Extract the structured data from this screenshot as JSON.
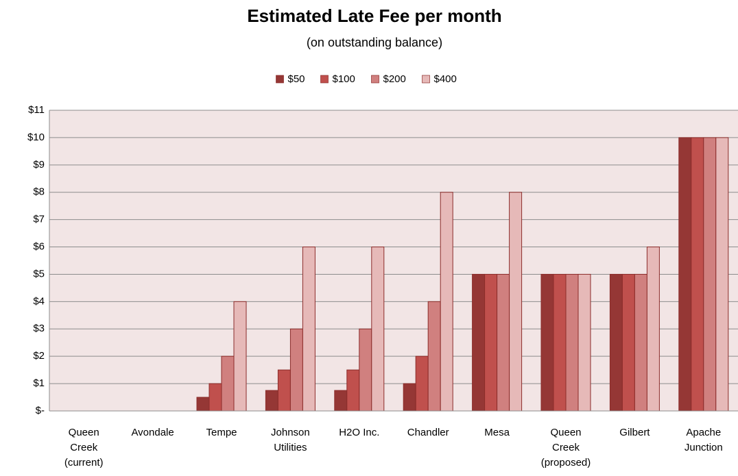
{
  "chart_data": {
    "type": "bar",
    "title": "Estimated Late Fee per month",
    "subtitle": "(on outstanding balance)",
    "categories": [
      "Queen Creek (current)",
      "Avondale",
      "Tempe",
      "Johnson Utilities",
      "H2O Inc.",
      "Chandler",
      "Mesa",
      "Queen Creek (proposed)",
      "Gilbert",
      "Apache Junction"
    ],
    "series": [
      {
        "name": "$50",
        "color": "#953735",
        "values": [
          0,
          0,
          0.5,
          0.75,
          0.75,
          1,
          5,
          5,
          5,
          10
        ]
      },
      {
        "name": "$100",
        "color": "#c0504d",
        "values": [
          0,
          0,
          1,
          1.5,
          1.5,
          2,
          5,
          5,
          5,
          10
        ]
      },
      {
        "name": "$200",
        "color": "#d0807f",
        "values": [
          0,
          0,
          2,
          3,
          3,
          4,
          5,
          5,
          5,
          10
        ]
      },
      {
        "name": "$400",
        "color": "#e6b9b8",
        "values": [
          0,
          0,
          4,
          6,
          6,
          8,
          8,
          5,
          6,
          10
        ]
      }
    ],
    "ylim": [
      0,
      11
    ],
    "yticks": [
      {
        "value": 0,
        "label": "$-"
      },
      {
        "value": 1,
        "label": "$1"
      },
      {
        "value": 2,
        "label": "$2"
      },
      {
        "value": 3,
        "label": "$3"
      },
      {
        "value": 4,
        "label": "$4"
      },
      {
        "value": 5,
        "label": "$5"
      },
      {
        "value": 6,
        "label": "$6"
      },
      {
        "value": 7,
        "label": "$7"
      },
      {
        "value": 8,
        "label": "$8"
      },
      {
        "value": 9,
        "label": "$9"
      },
      {
        "value": 10,
        "label": "$10"
      },
      {
        "value": 11,
        "label": "$11"
      }
    ],
    "grid": true,
    "legend": "top"
  }
}
